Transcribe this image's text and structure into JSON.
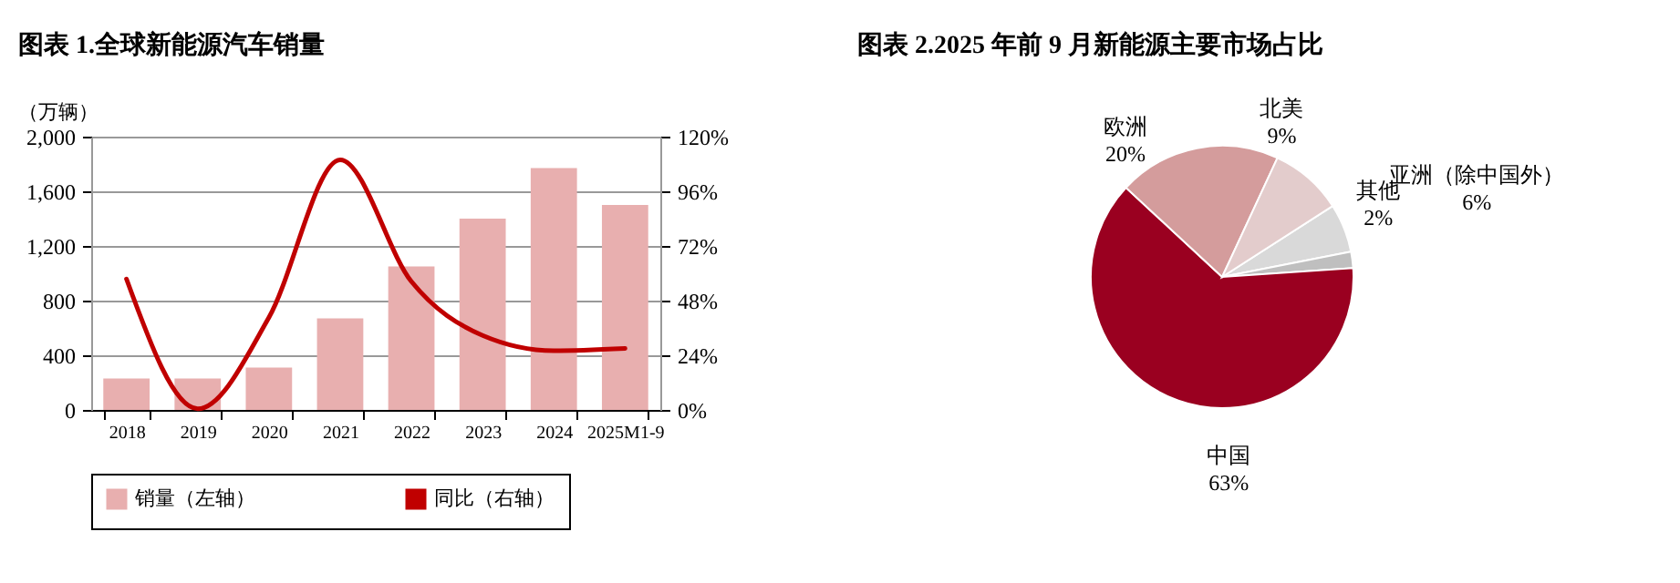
{
  "chart_data": [
    {
      "type": "bar",
      "title": "图表 1.全球新能源汽车销量",
      "ylabel": "（万辆）",
      "categories": [
        "2018",
        "2019",
        "2020",
        "2021",
        "2022",
        "2023",
        "2024",
        "2025M1-9"
      ],
      "series": [
        {
          "name": "销量（左轴）",
          "type": "bar",
          "color": "#e8afaf",
          "values": [
            230,
            230,
            310,
            670,
            1050,
            1400,
            1770,
            1500
          ]
        },
        {
          "name": "同比（右轴）",
          "type": "line",
          "axis": "y2",
          "color": "#c00000",
          "values": [
            57.5,
            0.5,
            40.6,
            109.8,
            56.4,
            32.7,
            26,
            27
          ]
        }
      ],
      "ylim": [
        0,
        2000
      ],
      "yticks": [
        0,
        {
          "value": 400,
          "label": "400"
        },
        {
          "value": 800,
          "label": "800"
        },
        {
          "value": 1200,
          "label": "1,200"
        },
        {
          "value": 1600,
          "label": "1,600"
        },
        {
          "value": 2000,
          "label": "2,000"
        }
      ],
      "y2lim": [
        0,
        120
      ],
      "y2ticks": [
        {
          "value": 0,
          "label": "0%"
        },
        {
          "value": 24,
          "label": "24%"
        },
        {
          "value": 48,
          "label": "48%"
        },
        {
          "value": 72,
          "label": "72%"
        },
        {
          "value": 96,
          "label": "96%"
        },
        {
          "value": 120,
          "label": "120%"
        }
      ],
      "grid": "y",
      "legend": "bottom"
    },
    {
      "type": "pie",
      "title": "图表 2.2025 年前 9 月新能源主要市场占比",
      "categories": [
        "亚洲（除中国外）",
        "其他",
        "中国",
        "欧洲",
        "北美"
      ],
      "values": [
        6,
        2,
        63,
        20,
        9
      ],
      "colors": [
        "#d9d9d9",
        "#bfbfbf",
        "#9a0020",
        "#d49c9c",
        "#e3cccc"
      ],
      "value_labels": [
        "6%",
        "2%",
        "63%",
        "20%",
        "9%"
      ]
    }
  ]
}
